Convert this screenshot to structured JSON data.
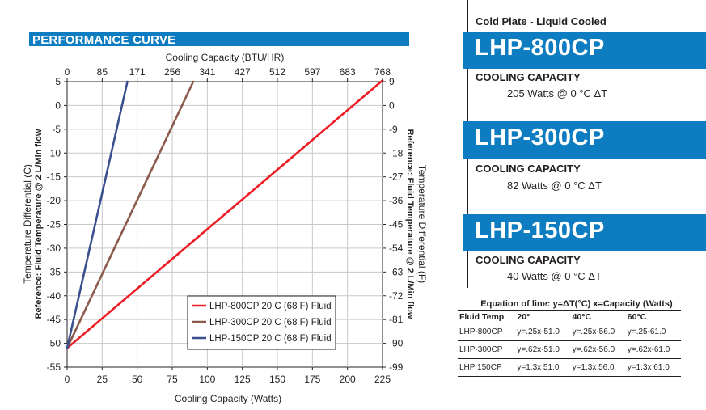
{
  "section_title": "PERFORMANCE CURVE",
  "colors": {
    "accent": "#0e7cc1",
    "red": "#ee1c25",
    "brown": "#8b5a4a",
    "navy": "#3b4f8f"
  },
  "chart_data": {
    "type": "line",
    "xlabel": "Cooling Capacity (Watts)",
    "xlabel_top": "Cooling Capacity (BTU/HR)",
    "ylabel_left": "Temperature Differential (C)",
    "ylabel_left2": "Reference: Fluid Temperature @ 2 L/Min flow",
    "ylabel_right": "Temperature Differential (F)",
    "ylabel_right2": "Reference: Fluid Temperature @ 2 L/Min flow",
    "xlim": [
      0,
      225
    ],
    "ylim": [
      -55,
      5
    ],
    "x_ticks": [
      "0",
      "25",
      "50",
      "75",
      "100",
      "125",
      "150",
      "175",
      "200",
      "225"
    ],
    "x_top_ticks": [
      "0",
      "85",
      "171",
      "256",
      "341",
      "427",
      "512",
      "597",
      "683",
      "768"
    ],
    "y_left_ticks": [
      "5",
      "0",
      "-5",
      "-10",
      "-15",
      "-20",
      "-25",
      "-30",
      "-35",
      "-40",
      "-45",
      "-50",
      "-55"
    ],
    "y_right_ticks": [
      "9",
      "0",
      "-9",
      "-18",
      "-27",
      "-36",
      "-45",
      "-54",
      "-63",
      "-72",
      "-81",
      "-90",
      "-99"
    ],
    "grid": true,
    "legend_position": "bottom-right",
    "series": [
      {
        "name": "LHP-800CP 20 C (68 F) Fluid",
        "color": "#ee1c25",
        "x": [
          0,
          225
        ],
        "y": [
          -51,
          5.25
        ]
      },
      {
        "name": "LHP-300CP 20 C (68 F) Fluid",
        "color": "#8b5a4a",
        "x": [
          0,
          90
        ],
        "y": [
          -51,
          5
        ]
      },
      {
        "name": "LHP-150CP 20 C (68 F) Fluid",
        "color": "#3b4f8f",
        "x": [
          0,
          43
        ],
        "y": [
          -51,
          5
        ]
      }
    ]
  },
  "product_panel": {
    "category": "Cold Plate - Liquid Cooled",
    "products": [
      {
        "name": "LHP-800CP",
        "capacity_label": "COOLING CAPACITY",
        "capacity_value": "205 Watts  @  0 °C ΔT"
      },
      {
        "name": "LHP-300CP",
        "capacity_label": "COOLING CAPACITY",
        "capacity_value": "82 Watts  @  0 °C ΔT"
      },
      {
        "name": "LHP-150CP",
        "capacity_label": "COOLING CAPACITY",
        "capacity_value": "40 Watts  @  0 °C ΔT"
      }
    ]
  },
  "equation_table": {
    "caption": "Equation of line: y=ΔT(°C)  x=Capacity (Watts)",
    "headers": [
      "Fluid Temp",
      "20°",
      "40°C",
      "60°C"
    ],
    "rows": [
      [
        "LHP-800CP",
        "y=.25x-51.0",
        "y=.25x-56.0",
        "y=.25-61.0"
      ],
      [
        "LHP-300CP",
        "y=.62x-51.0",
        "y=.62x-56.0",
        "y=.62x-61.0"
      ],
      [
        "LHP 150CP",
        "y=1.3x 51.0",
        "y=1.3x 56.0",
        "y=1.3x 61.0"
      ]
    ]
  }
}
